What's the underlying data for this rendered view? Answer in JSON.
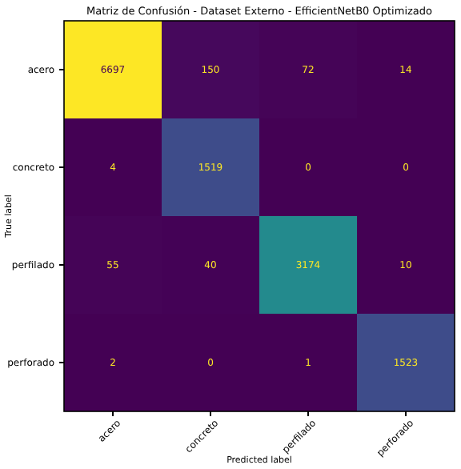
{
  "chart_data": {
    "type": "heatmap",
    "title": "Matriz de Confusión - Dataset Externo - EfficientNetB0 Optimizado",
    "xlabel": "Predicted label",
    "ylabel": "True label",
    "categories": [
      "acero",
      "concreto",
      "perfilado",
      "perforado"
    ],
    "y_categories": [
      "acero",
      "concreto",
      "perfilado",
      "perforado"
    ],
    "cells": [
      [
        6697,
        150,
        72,
        14
      ],
      [
        4,
        1519,
        0,
        0
      ],
      [
        55,
        40,
        3174,
        10
      ],
      [
        2,
        0,
        1,
        1523
      ]
    ],
    "data_labels": true
  }
}
